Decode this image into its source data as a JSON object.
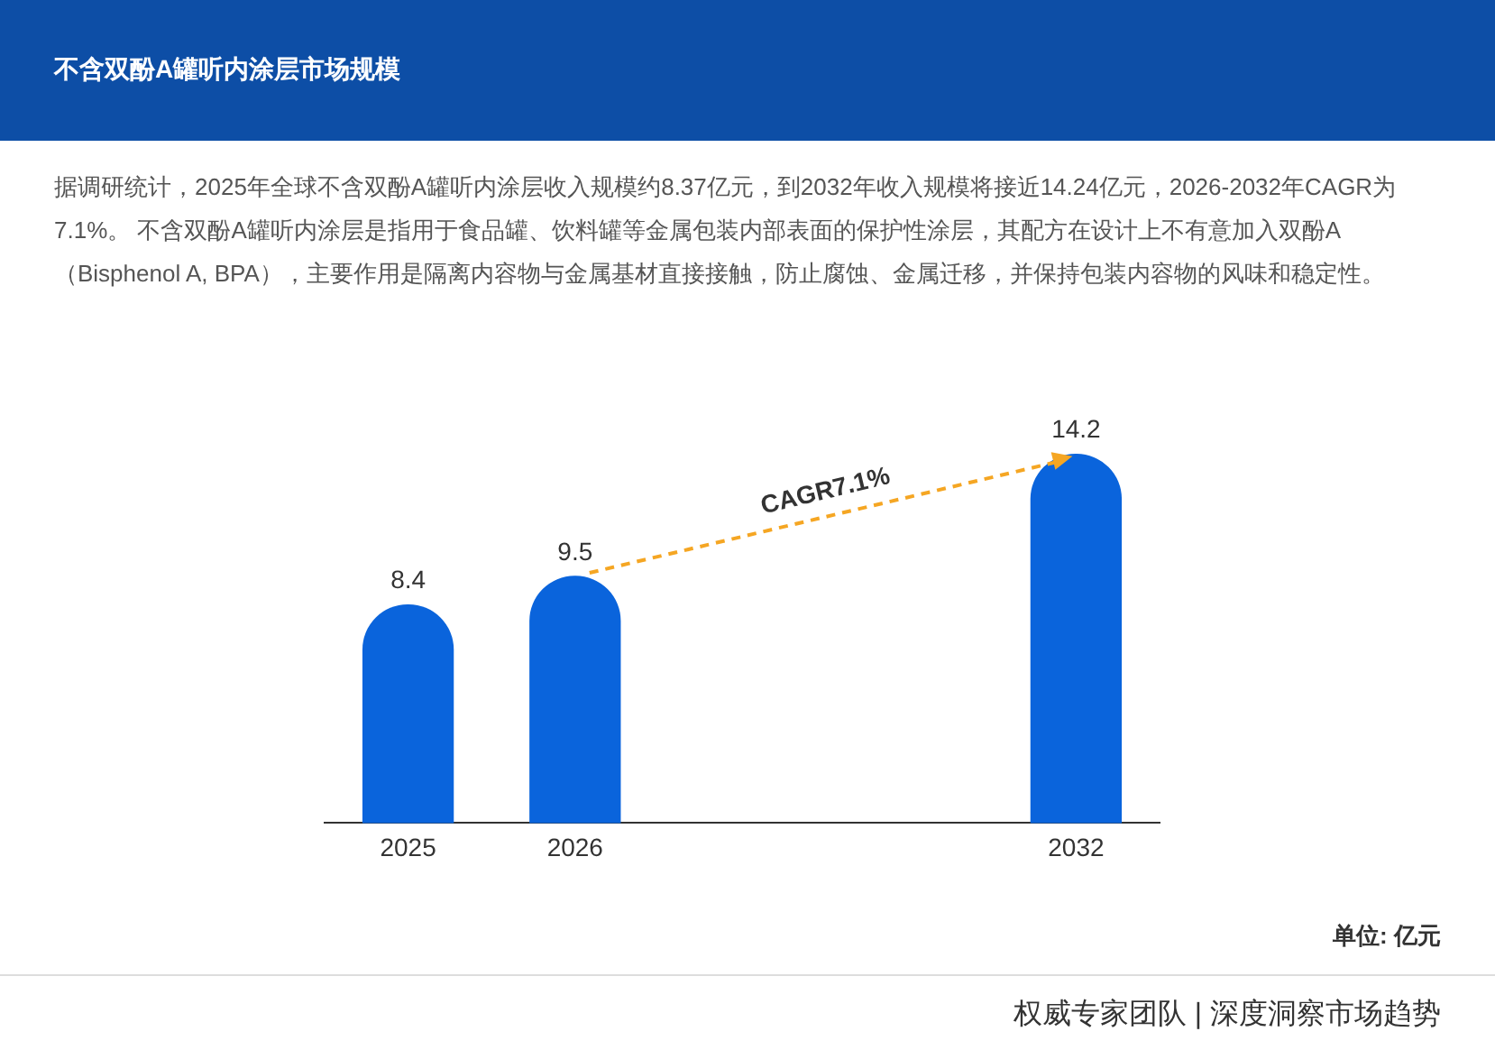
{
  "chart_data": {
    "type": "bar",
    "title": "不含双酚A罐听内涂层市场规模",
    "subtitle": "据调研统计，2025年全球不含双酚A罐听内涂层收入规模约8.37亿元，到2032年收入规模将接近14.24亿元，2026-2032年CAGR为7.1%。 不含双酚A罐听内涂层是指用于食品罐、饮料罐等金属包装内部表面的保护性涂层，其配方在设计上不有意加入双酚A（Bisphenol A, BPA），主要作用是隔离内容物与金属基材直接接触，防止腐蚀、金属迁移，并保持包装内容物的风味和稳定性。",
    "categories": [
      "2025",
      "2026",
      null,
      null,
      "2032"
    ],
    "values": [
      8.4,
      9.5,
      null,
      null,
      14.2
    ],
    "color": "#0a64dc",
    "data_labels": true,
    "grid": false,
    "legend": false,
    "annotations": [
      "CAGR7.1%",
      "单位: 亿元",
      "权威专家团队 | 深度洞察市场趋势"
    ]
  }
}
